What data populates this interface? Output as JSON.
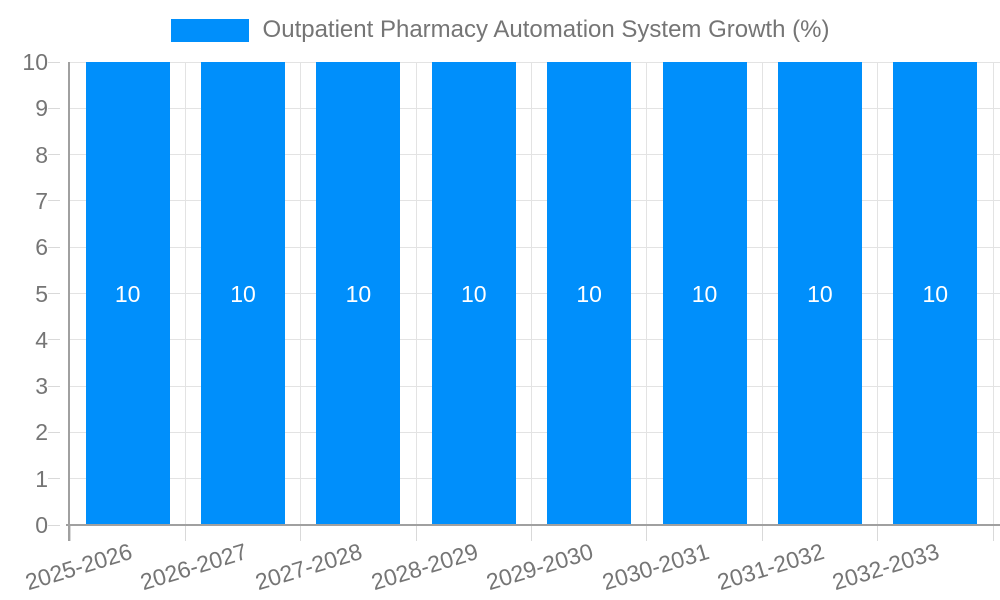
{
  "chart_data": {
    "type": "bar",
    "title": "Outpatient Pharmacy Automation System Growth (%)",
    "categories": [
      "2025-2026",
      "2026-2027",
      "2027-2028",
      "2028-2029",
      "2029-2030",
      "2030-2031",
      "2031-2032",
      "2032-2033"
    ],
    "series": [
      {
        "name": "Outpatient Pharmacy Automation System Growth (%)",
        "values": [
          10,
          10,
          10,
          10,
          10,
          10,
          10,
          10
        ],
        "color": "#008FFB"
      }
    ],
    "bar_value_labels": [
      "10",
      "10",
      "10",
      "10",
      "10",
      "10",
      "10",
      "10"
    ],
    "xlabel": "",
    "ylabel": "",
    "ylim": [
      0,
      10
    ],
    "yticks": [
      0,
      1,
      2,
      3,
      4,
      5,
      6,
      7,
      8,
      9,
      10
    ],
    "grid": true,
    "legend_position": "top"
  },
  "colors": {
    "bar": "#008FFB",
    "grid": "#e3e3e3",
    "tick": "#d9d9d9",
    "axis": "#a0a0a0",
    "axis_label": "#757575",
    "value_label": "#ffffff",
    "background": "#ffffff"
  }
}
